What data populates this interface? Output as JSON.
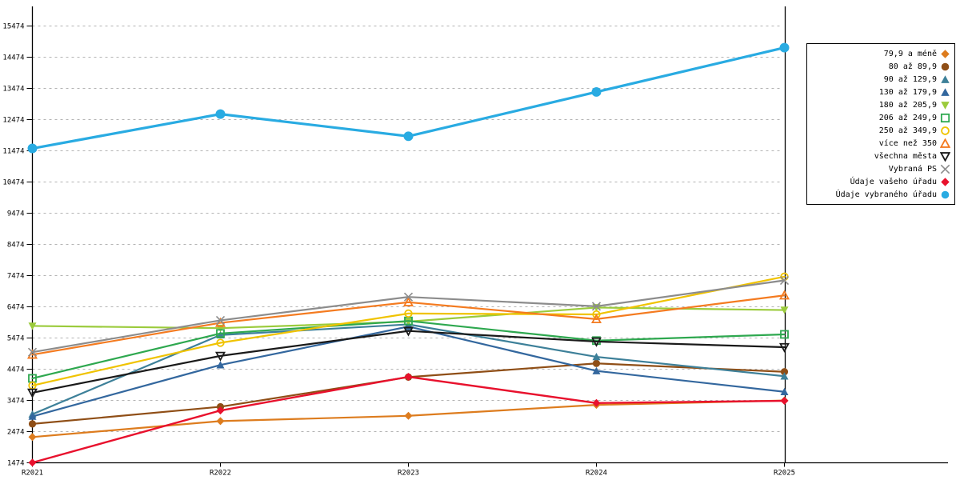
{
  "chart_data": {
    "type": "line",
    "title": "",
    "xlabel": "",
    "ylabel": "",
    "categories": [
      "R2021",
      "R2022",
      "R2023",
      "R2024",
      "R2025"
    ],
    "y_axis": {
      "min": 1474,
      "max": 15474,
      "tick_step": 1000
    },
    "grid": "horizontal-dashed",
    "legend_position": "right",
    "colors": {
      "grid": "#b3b3b3",
      "axis": "#000000",
      "background": "#ffffff"
    },
    "series": [
      {
        "name": "79,9 a méně",
        "color": "#dd7c1e",
        "marker": "diamond",
        "fill": "filled",
        "values": [
          2300,
          2810,
          2980,
          3330,
          3470
        ]
      },
      {
        "name": "80 až 89,9",
        "color": "#8f4e16",
        "marker": "circle",
        "fill": "filled",
        "values": [
          2720,
          3270,
          4220,
          4660,
          4390
        ]
      },
      {
        "name": "90 až 129,9",
        "color": "#3d8099",
        "marker": "triangle-up",
        "fill": "filled",
        "values": [
          3030,
          5570,
          5910,
          4870,
          4250
        ]
      },
      {
        "name": "130 až 179,9",
        "color": "#33679e",
        "marker": "triangle-up",
        "fill": "filled",
        "values": [
          2960,
          4610,
          5840,
          4420,
          3750
        ]
      },
      {
        "name": "180 až 205,9",
        "color": "#9bcb3c",
        "marker": "triangle-down",
        "fill": "filled",
        "values": [
          5860,
          5790,
          6000,
          6450,
          6370
        ]
      },
      {
        "name": "206 až 249,9",
        "color": "#2ea84f",
        "marker": "square",
        "fill": "hollow",
        "values": [
          4180,
          5620,
          6020,
          5390,
          5590
        ]
      },
      {
        "name": "250 až 349,9",
        "color": "#f0c300",
        "marker": "circle",
        "fill": "hollow",
        "values": [
          3950,
          5320,
          6260,
          6230,
          7440
        ]
      },
      {
        "name": "více než 350",
        "color": "#f47b20",
        "marker": "triangle-up",
        "fill": "hollow",
        "values": [
          4940,
          5960,
          6620,
          6080,
          6840
        ]
      },
      {
        "name": "všechna města",
        "color": "#1a1a1a",
        "marker": "triangle-down",
        "fill": "hollow",
        "values": [
          3720,
          4900,
          5700,
          5360,
          5180
        ]
      },
      {
        "name": "Vybraná PS",
        "color": "#8c8c8c",
        "marker": "x",
        "fill": "hollow",
        "values": [
          5020,
          6040,
          6790,
          6490,
          7320
        ]
      },
      {
        "name": "Údaje vašeho úřadu",
        "color": "#e8112d",
        "marker": "diamond",
        "fill": "filled",
        "values": [
          1480,
          3150,
          4230,
          3390,
          3460
        ]
      },
      {
        "name": "Údaje vybraného úřadu",
        "color": "#29abe2",
        "marker": "circle",
        "fill": "filled",
        "values": [
          11550,
          12650,
          11940,
          13360,
          14780
        ]
      }
    ]
  }
}
